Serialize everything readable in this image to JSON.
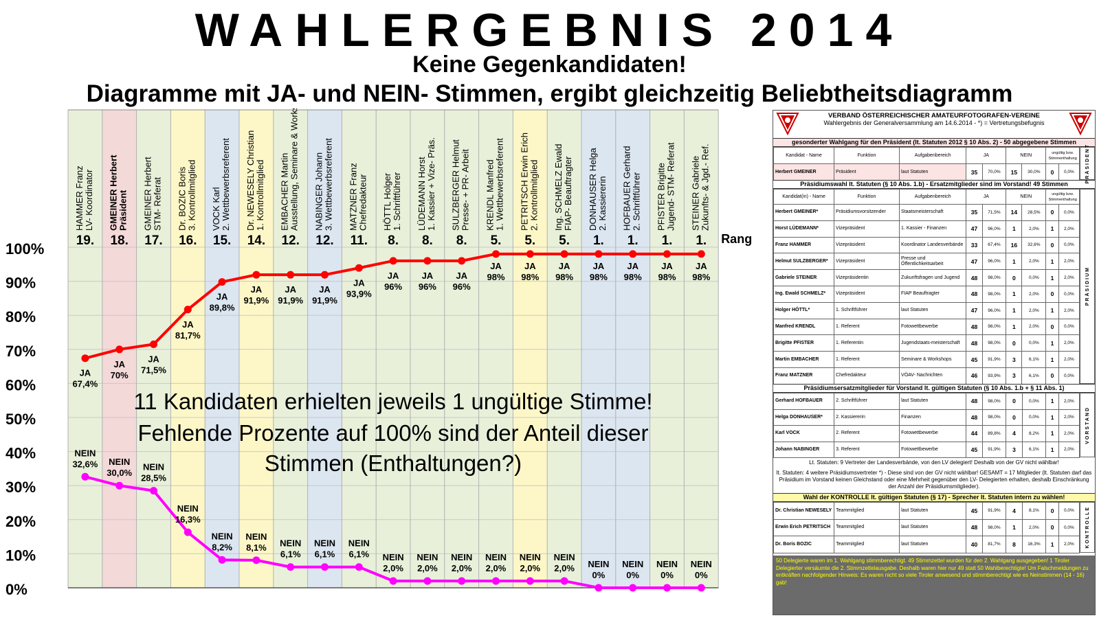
{
  "header": {
    "title": "WAHLERGEBNIS 2014",
    "subtitle1": "Keine Gegenkandidaten!",
    "subtitle2": "Diagramme mit JA- und NEIN- Stimmen, ergibt gleichzeitig Beliebtheitsdiagramm"
  },
  "chart_data": {
    "type": "line",
    "title": "",
    "xlabel": "",
    "ylabel": "",
    "ylim": [
      0,
      100
    ],
    "y_ticks": [
      "0%",
      "10%",
      "20%",
      "30%",
      "40%",
      "50%",
      "60%",
      "70%",
      "80%",
      "90%",
      "100%"
    ],
    "rank_label": "Rang",
    "categories": [
      {
        "name": "HAMMER Franz",
        "role": "LV- Koordinator",
        "rank": "19.",
        "color": "#e8f0da"
      },
      {
        "name": "GMEINER Herbert",
        "role": "Präsident",
        "rank": "18.",
        "color": "#f4d9d9",
        "bold": true
      },
      {
        "name": "GMEINER Herbert",
        "role": "STM- Referat",
        "rank": "17.",
        "color": "#e8f0da"
      },
      {
        "name": "Dr. BOZIC Boris",
        "role": "3. Kontrollmitglied",
        "rank": "16.",
        "color": "#fdf7c8"
      },
      {
        "name": "VOCK Karl",
        "role": "2. Wettbewerbsreferent",
        "rank": "15.",
        "color": "#dce6f1"
      },
      {
        "name": "Dr. NEWESELY Christian",
        "role": "1. Kontrollmitglied",
        "rank": "14.",
        "color": "#fdf7c8"
      },
      {
        "name": "EMBACHER Martin",
        "role": "Ausstellung, Seminare & Workshops",
        "rank": "12.",
        "color": "#e8f0da"
      },
      {
        "name": "NABINGER Johann",
        "role": "3. Wettbewerbsreferent",
        "rank": "12.",
        "color": "#dce6f1"
      },
      {
        "name": "MATZNER Franz",
        "role": "Chefredakteur",
        "rank": "11.",
        "color": "#e8f0da"
      },
      {
        "name": "HÖTTL Holger",
        "role": "1. Schriftführer",
        "rank": "8.",
        "color": "#e8f0da"
      },
      {
        "name": "LÜDEMANN Horst",
        "role": "1. Kassier + Vize- Präs.",
        "rank": "8.",
        "color": "#e8f0da"
      },
      {
        "name": "SULZBERGER Helmut",
        "role": "Presse- + PR- Arbeit",
        "rank": "8.",
        "color": "#e8f0da"
      },
      {
        "name": "KRENDL Manfred",
        "role": "1. Wettbewerbsreferent",
        "rank": "5.",
        "color": "#e8f0da"
      },
      {
        "name": "PETRITSCH Erwin Erich",
        "role": "2. Kontrollmitglied",
        "rank": "5.",
        "color": "#fdf7c8"
      },
      {
        "name": "Ing. SCHMELZ Ewald",
        "role": "FIAP- Beauftragter",
        "rank": "5.",
        "color": "#e8f0da"
      },
      {
        "name": "DONHAUSER Helga",
        "role": "2. Kassiererin",
        "rank": "1.",
        "color": "#dce6f1"
      },
      {
        "name": "HOFBAUER Gerhard",
        "role": "2. Schriftführer",
        "rank": "1.",
        "color": "#dce6f1"
      },
      {
        "name": "PFISTER Brigitte",
        "role": "Jugend- STM- Referat",
        "rank": "1.",
        "color": "#e8f0da"
      },
      {
        "name": "STEINER Gabriele",
        "role": "Zukunfts- & Jgd.- Ref.",
        "rank": "1.",
        "color": "#e8f0da"
      }
    ],
    "series": [
      {
        "name": "JA",
        "color": "#ff0000",
        "values": [
          67.4,
          70,
          71.5,
          81.7,
          89.8,
          91.9,
          91.9,
          91.9,
          93.9,
          96,
          96,
          96,
          98,
          98,
          98,
          98,
          98,
          98,
          98
        ],
        "labels": [
          "67,4%",
          "70%",
          "71,5%",
          "81,7%",
          "89,8%",
          "91,9%",
          "91,9%",
          "91,9%",
          "93,9%",
          "96%",
          "96%",
          "96%",
          "98%",
          "98%",
          "98%",
          "98%",
          "98%",
          "98%",
          "98%"
        ]
      },
      {
        "name": "NEIN",
        "color": "#ff00ff",
        "values": [
          32.6,
          30.0,
          28.5,
          16.3,
          8.2,
          8.1,
          6.1,
          6.1,
          6.1,
          2.0,
          2.0,
          2.0,
          2.0,
          2.0,
          2.0,
          0,
          0,
          0,
          0
        ],
        "labels": [
          "32,6%",
          "30,0%",
          "28,5%",
          "16,3%",
          "8,2%",
          "8,1%",
          "6,1%",
          "6,1%",
          "6,1%",
          "2,0%",
          "2,0%",
          "2,0%",
          "2,0%",
          "2,0%",
          "2,0%",
          "0%",
          "0%",
          "0%",
          "0%"
        ]
      }
    ],
    "annotation": [
      "11 Kandidaten erhielten jeweils 1 ungültige Stimme!",
      "Fehlende Prozente auf 100% sind der Anteil dieser",
      "Stimmen (Enthaltungen?)"
    ]
  },
  "panel": {
    "org": "VERBAND ÖSTERREICHISCHER AMATEURFOTOGRAFEN-VEREINE",
    "subtitle": "Wahlergebnis der Generalversammlung am 14.6.2014 - *) = Vertretungsbefugnis",
    "section1": "gesonderter Wahlgang für den Präsident (lt. Statuten 2012 § 10 Abs. 2) - 50 abgegebene Stimmen",
    "cols1": {
      "name": "Kandidat - Name",
      "func": "Funktion",
      "area": "Aufgabenbereich",
      "ja": "JA",
      "nein": "NEIN",
      "inv": "ungültig bzw. Stimmenthaltung"
    },
    "cols2": {
      "name": "Kandidat(in) - Name",
      "func": "Funktion",
      "area": "Aufgabenbereich",
      "ja": "JA",
      "nein": "NEIN",
      "inv": "ungültig bzw. Stimmenthaltung"
    },
    "praesident_label": "PRÄSIDENT",
    "praesident_rows": [
      {
        "name": "Herbert GMEINER",
        "func": "Präsident",
        "area": "laut Statuten",
        "ja": "35",
        "jap": "70,0%",
        "nein": "15",
        "neinp": "30,0%",
        "inv": "0",
        "invp": "0,0%"
      }
    ],
    "section2": "Präsidiumswahl lt. Statuten (§ 10 Abs. 1.b) - Ersatzmitglieder sind im Vorstand! 49 Stimmen",
    "praesidium_label": "PRÄSIDIUM",
    "praesidium_rows": [
      {
        "name": "Herbert GMEINER*",
        "func": "Präsidiumsvorsitzender",
        "area": "Staatsmeisterschaft",
        "ja": "35",
        "jap": "71,5%",
        "nein": "14",
        "neinp": "28,5%",
        "inv": "0",
        "invp": "0,0%"
      },
      {
        "name": "Horst LÜDEMANN*",
        "func": "Vizepräsident",
        "area": "1. Kassier - Finanzen",
        "ja": "47",
        "jap": "96,0%",
        "nein": "1",
        "neinp": "2,0%",
        "inv": "1",
        "invp": "2,0%"
      },
      {
        "name": "Franz HAMMER",
        "func": "Vizepräsident",
        "area": "Koordinator Landesverbände",
        "ja": "33",
        "jap": "67,4%",
        "nein": "16",
        "neinp": "32,6%",
        "inv": "0",
        "invp": "0,0%"
      },
      {
        "name": "Helmut SULZBERGER*",
        "func": "Vizepräsident",
        "area": "Presse und Öffentlichkeitsarbeit",
        "ja": "47",
        "jap": "96,0%",
        "nein": "1",
        "neinp": "2,0%",
        "inv": "1",
        "invp": "2,0%"
      },
      {
        "name": "Gabriele STEINER",
        "func": "Vizepräsidentin",
        "area": "Zukunftsfragen und Jugend",
        "ja": "48",
        "jap": "98,0%",
        "nein": "0",
        "neinp": "0,0%",
        "inv": "1",
        "invp": "2,0%"
      },
      {
        "name": "Ing. Ewald SCHMELZ*",
        "func": "Vizepräsident",
        "area": "FIAP Beauftragter",
        "ja": "48",
        "jap": "98,0%",
        "nein": "1",
        "neinp": "2,0%",
        "inv": "0",
        "invp": "0,0%"
      },
      {
        "name": "Holger HÖTTL*",
        "func": "1. Schriftführer",
        "area": "laut Statuten",
        "ja": "47",
        "jap": "96,0%",
        "nein": "1",
        "neinp": "2,0%",
        "inv": "1",
        "invp": "2,0%"
      },
      {
        "name": "Manfred KRENDL",
        "func": "1. Referent",
        "area": "Fotowettbewerbe",
        "ja": "48",
        "jap": "98,0%",
        "nein": "1",
        "neinp": "2,0%",
        "inv": "0",
        "invp": "0,0%"
      },
      {
        "name": "Brigitte PFISTER",
        "func": "1. Referentin",
        "area": "Jugendstaats-meisterschaft",
        "ja": "48",
        "jap": "98,0%",
        "nein": "0",
        "neinp": "0,0%",
        "inv": "1",
        "invp": "2,0%"
      },
      {
        "name": "Martin EMBACHER",
        "func": "1. Referent",
        "area": "Seminare & Workshops",
        "ja": "45",
        "jap": "91,9%",
        "nein": "3",
        "neinp": "6,1%",
        "inv": "1",
        "invp": "2,0%"
      },
      {
        "name": "Franz MATZNER",
        "func": "Chefredakteur",
        "area": "VÖAV- Nachrichten",
        "ja": "46",
        "jap": "93,9%",
        "nein": "3",
        "neinp": "6,1%",
        "inv": "0",
        "invp": "0,0%"
      }
    ],
    "section3": "Präsidiumsersatzmitglieder für Vorstand lt. gültigen Statuten (§ 10 Abs. 1.b + § 11 Abs. 1)",
    "vorstand_label": "VORSTAND",
    "vorstand_rows": [
      {
        "name": "Gerhard HOFBAUER",
        "func": "2. Schriftführer",
        "area": "laut Statuten",
        "ja": "48",
        "jap": "98,0%",
        "nein": "0",
        "neinp": "0,0%",
        "inv": "1",
        "invp": "2,0%"
      },
      {
        "name": "Helga DONHAUSER*",
        "func": "2. Kassiererin",
        "area": "Finanzen",
        "ja": "48",
        "jap": "98,0%",
        "nein": "0",
        "neinp": "0,0%",
        "inv": "1",
        "invp": "2,0%"
      },
      {
        "name": "Karl VOCK",
        "func": "2. Referent",
        "area": "Fotowettbewerbe",
        "ja": "44",
        "jap": "89,8%",
        "nein": "4",
        "neinp": "8,2%",
        "inv": "1",
        "invp": "2,0%"
      },
      {
        "name": "Johann NABINGER",
        "func": "3. Referent",
        "area": "Fotowettbewerbe",
        "ja": "45",
        "jap": "91,9%",
        "nein": "3",
        "neinp": "6,1%",
        "inv": "1",
        "invp": "2,0%"
      }
    ],
    "note1": "Lt. Statuten: 9 Vertreter der Landesverbände, von den LV delegiert! Deshalb von der GV nicht wählbar!",
    "note2": "lt. Statuten: 4 weitere Präsidiumsvertreter *) - Diese sind von der GV nicht wählbar! GESAMT = 17 Mitglieder (lt. Statuten darf das Präsidium im Vorstand keinen Gleichstand oder eine Mehrheit gegenüber den LV- Delegierten erhalten, deshalb Einschränkung der Anzahl der Präsidiumsmitglieder).",
    "section4": "Wahl der KONTROLLE lt. gültigen Statuten (§ 17) - Sprecher lt. Statuten intern zu wählen!",
    "kontrolle_label": "KONTROLLE",
    "kontrolle_rows": [
      {
        "name": "Dr. Christian NEWESELY",
        "func": "Teammitglied",
        "area": "laut Statuten",
        "ja": "45",
        "jap": "91,9%",
        "nein": "4",
        "neinp": "8,1%",
        "inv": "0",
        "invp": "0,0%"
      },
      {
        "name": "Erwin Erich PETRITSCH",
        "func": "Teammitglied",
        "area": "laut Statuten",
        "ja": "48",
        "jap": "98,0%",
        "nein": "1",
        "neinp": "2,0%",
        "inv": "0",
        "invp": "0,0%"
      },
      {
        "name": "Dr. Boris BOZIC",
        "func": "Teammitglied",
        "area": "laut Statuten",
        "ja": "40",
        "jap": "81,7%",
        "nein": "8",
        "neinp": "16,3%",
        "inv": "1",
        "invp": "2,0%"
      }
    ],
    "footnote": "50 Delegierte waren im 1. Wahlgang stimmberechtigt. 49 Stimmzettel wurden für den 2. Wahlgang ausgegeben! 1 Tiroler Delegierter versäumte die 2. Stimmzettelausgabe. Deshalb waren hier nur 49 statt 50 Wahlberechtigte! Um Falschmeldungen zu entkräften nachfolgender Hinweis: Es waren nicht so viele Tiroler anwesend und stimmberechtigt wie es Neinstimmen (14 - 16) gab!"
  }
}
